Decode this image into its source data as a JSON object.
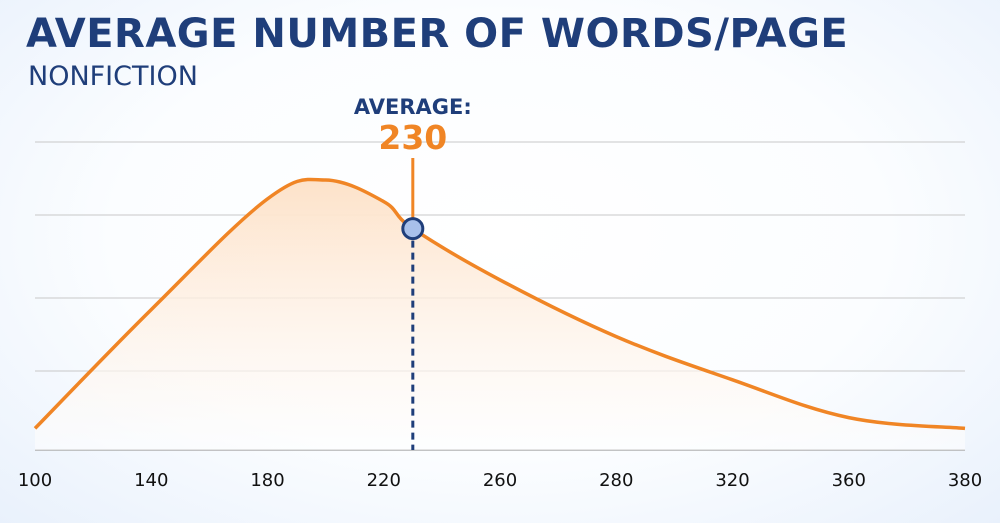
{
  "colors": {
    "title": "#1f3e7a",
    "curve": "#f08525",
    "fill_top": "#fde2c9",
    "grid": "#c8c8c8",
    "marker_fill": "#a8c0ea",
    "marker_stroke": "#1f3e7a"
  },
  "chart_data": {
    "type": "area",
    "title": "AVERAGE NUMBER OF WORDS/PAGE",
    "subtitle": "NONFICTION",
    "xlabel": "",
    "ylabel": "",
    "x_ticks": [
      "100",
      "140",
      "180",
      "220",
      "260",
      "280",
      "320",
      "360",
      "380"
    ],
    "grid": true,
    "series": [
      {
        "values": [
          {
            "x": "100",
            "y": 0.08
          },
          {
            "x": "140",
            "y": 0.52
          },
          {
            "x": "180",
            "y": 0.93
          },
          {
            "x": "200",
            "y": 1.0
          },
          {
            "x": "220",
            "y": 0.92
          },
          {
            "x": "230",
            "y": 0.82
          },
          {
            "x": "260",
            "y": 0.63
          },
          {
            "x": "280",
            "y": 0.42
          },
          {
            "x": "320",
            "y": 0.26
          },
          {
            "x": "360",
            "y": 0.12
          },
          {
            "x": "380",
            "y": 0.08
          }
        ]
      }
    ],
    "annotation": {
      "label": "AVERAGE:",
      "value": "230",
      "x": "230"
    }
  }
}
